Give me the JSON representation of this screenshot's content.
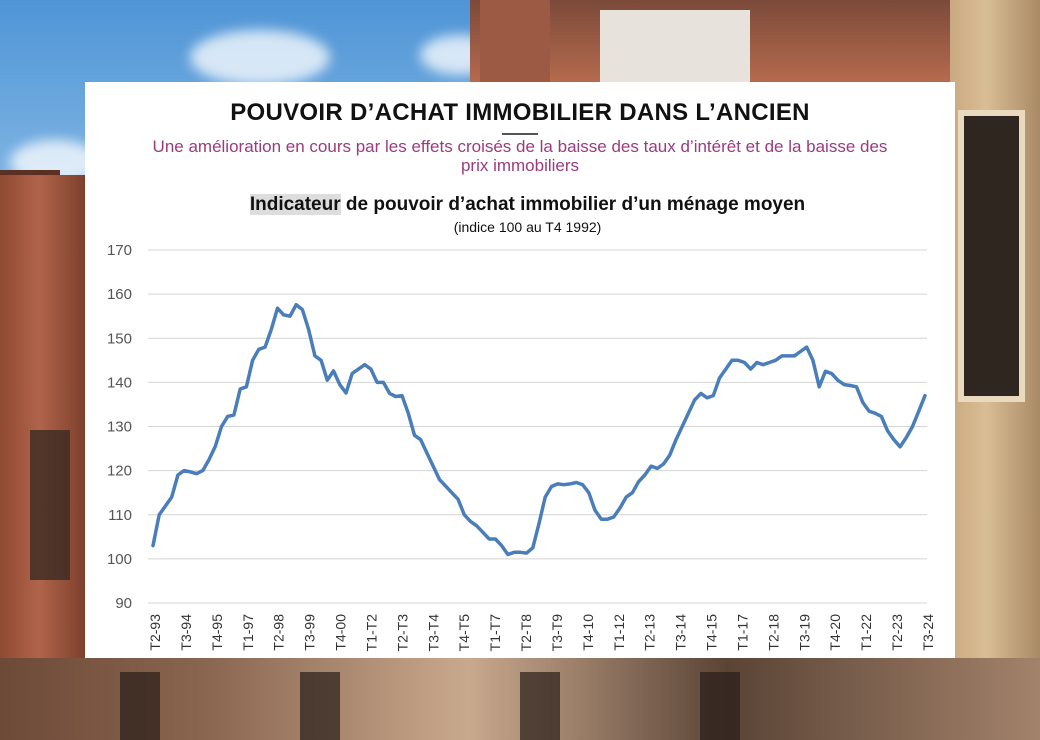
{
  "card": {
    "title": "POUVOIR D’ACHAT IMMOBILIER DANS L’ANCIEN",
    "subtitle": "Une amélioration en cours par les effets croisés de la baisse des taux d’intérêt et de la baisse des prix immobiliers"
  },
  "chart_data": {
    "type": "line",
    "title_highlight": "Indicateur",
    "title_rest": " de pouvoir d’achat immobilier d’un ménage moyen",
    "subtitle": "(indice 100 au T4 1992)",
    "ylim": [
      90,
      170
    ],
    "yticks": [
      90,
      100,
      110,
      120,
      130,
      140,
      150,
      160,
      170
    ],
    "grid": true,
    "legend": "none",
    "line_color": "#4a7ebb",
    "x_tick_labels": [
      "T2-93",
      "T3-94",
      "T4-95",
      "T1-97",
      "T2-98",
      "T3-99",
      "T4-00",
      "T1-T2",
      "T2-T3",
      "T3-T4",
      "T4-T5",
      "T1-T7",
      "T2-T8",
      "T3-T9",
      "T4-10",
      "T1-12",
      "T2-13",
      "T3-14",
      "T4-15",
      "T1-17",
      "T2-18",
      "T3-19",
      "T4-20",
      "T1-22",
      "T2-23",
      "T3-24"
    ],
    "x_start": "T2-93",
    "x_end": "T3-24",
    "values": [
      103,
      110,
      112,
      114,
      119,
      120,
      119.7,
      119.3,
      120,
      122.5,
      125.5,
      130,
      132.3,
      132.6,
      138.5,
      139,
      145,
      147.5,
      148,
      152,
      156.8,
      155.3,
      155,
      157.6,
      156.5,
      152,
      146,
      145,
      140.5,
      142.6,
      139.5,
      137.6,
      142,
      143,
      144,
      143,
      140,
      140,
      137.5,
      136.8,
      137,
      133,
      128,
      127,
      124,
      121,
      118,
      116.5,
      115,
      113.5,
      110,
      108.5,
      107.5,
      106,
      104.5,
      104.5,
      103,
      101,
      101.5,
      101.5,
      101.3,
      102.5,
      108,
      114,
      116.4,
      117,
      116.8,
      117,
      117.3,
      116.8,
      115,
      111,
      109,
      109,
      109.5,
      111.5,
      114,
      115,
      117.5,
      119,
      121,
      120.5,
      121.5,
      123.5,
      127,
      130,
      133,
      136,
      137.5,
      136.5,
      137,
      141,
      143,
      145,
      145,
      144.5,
      143,
      144.5,
      144,
      144.5,
      145,
      146,
      146,
      146,
      147,
      148,
      145,
      139,
      142.5,
      142,
      140.5,
      139.5,
      139.3,
      139,
      135.5,
      133.5,
      133,
      132.3,
      129,
      127,
      125.4,
      127.5,
      130,
      133.5,
      137
    ]
  }
}
